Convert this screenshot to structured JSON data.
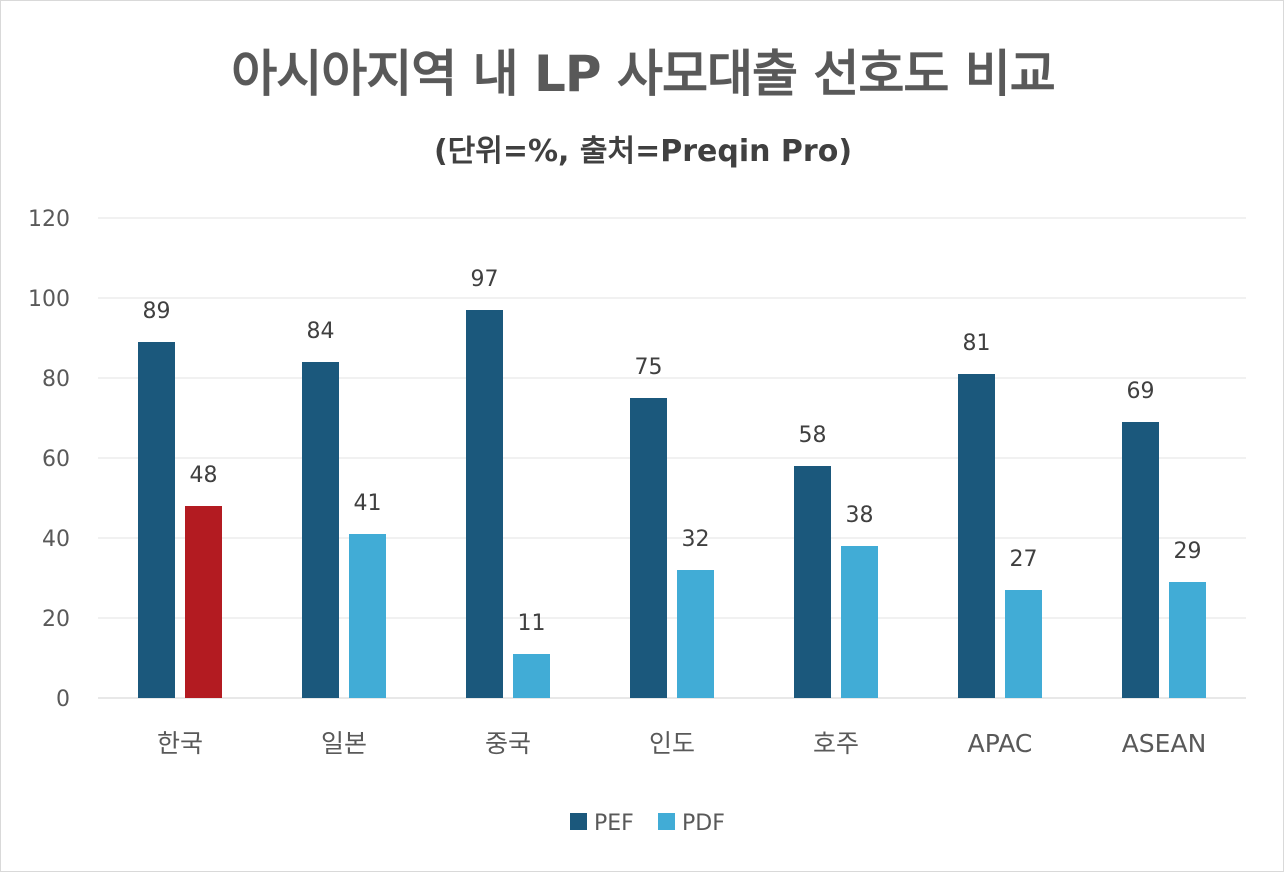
{
  "chart_data": {
    "type": "bar",
    "title": "아시아지역 내 LP 사모대출 선호도 비교",
    "subtitle": "(단위=%, 출처=Preqin Pro)",
    "categories": [
      "한국",
      "일본",
      "중국",
      "인도",
      "호주",
      "APAC",
      "ASEAN"
    ],
    "series": [
      {
        "name": "PEF",
        "values": [
          89,
          84,
          97,
          75,
          58,
          81,
          69
        ],
        "color": "#1b587c"
      },
      {
        "name": "PDF",
        "values": [
          48,
          41,
          11,
          32,
          38,
          27,
          29
        ],
        "color": "#41acd6"
      }
    ],
    "highlight": {
      "category": "한국",
      "series": "PDF",
      "color": "#b31b21"
    },
    "ylim": [
      0,
      120
    ],
    "yticks": [
      "0",
      "20",
      "40",
      "60",
      "80",
      "100",
      "120"
    ],
    "grid": true,
    "legend_position": "bottom-center",
    "xlabel": "",
    "ylabel": ""
  }
}
